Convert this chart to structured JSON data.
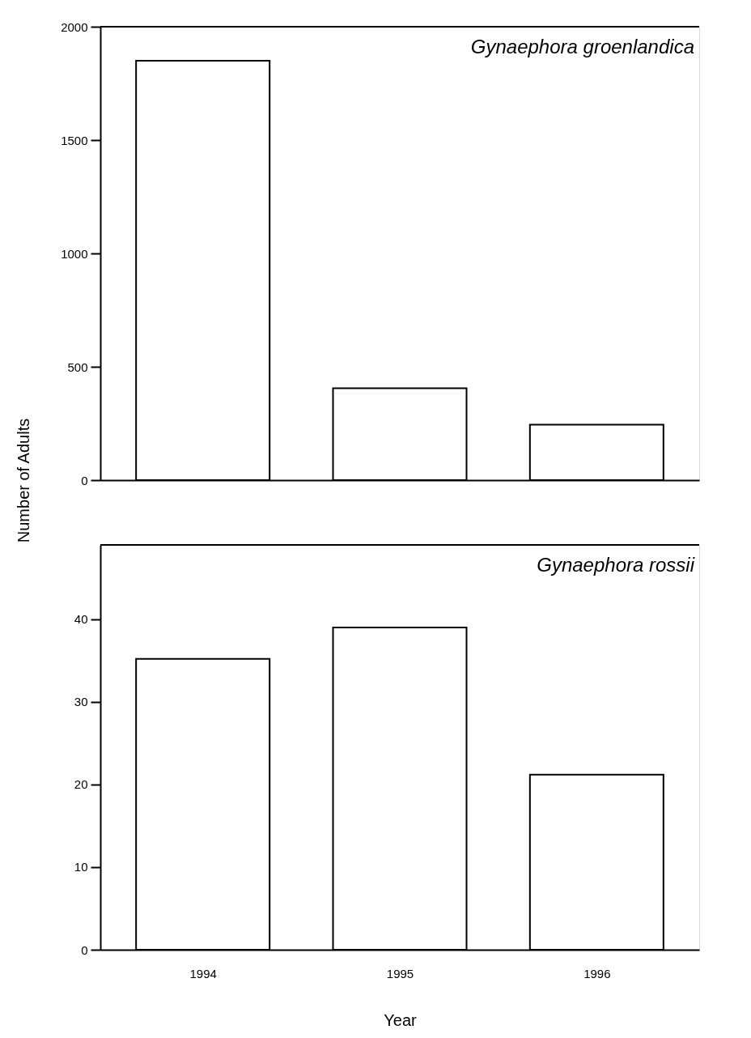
{
  "chart_data": [
    {
      "type": "bar",
      "categories": [
        "1994",
        "1995",
        "1996"
      ],
      "values": [
        1850,
        405,
        245
      ],
      "color": "#ffffff",
      "ylim": [
        0,
        2000
      ],
      "yticks": [
        0,
        500,
        1000,
        1500,
        2000
      ],
      "ylabel": "Number of Adults",
      "annotations": [
        "Gynaephora groenlandica"
      ],
      "tick_labels": "y"
    },
    {
      "type": "bar",
      "categories": [
        "1994",
        "1995",
        "1996"
      ],
      "values": [
        35.2,
        39,
        21.2
      ],
      "color": "#ffffff",
      "ylim": [
        0,
        49
      ],
      "yticks": [
        0,
        10,
        20,
        30,
        40
      ],
      "xlabel": "Year",
      "annotations": [
        "Gynaephora rossii"
      ]
    }
  ]
}
